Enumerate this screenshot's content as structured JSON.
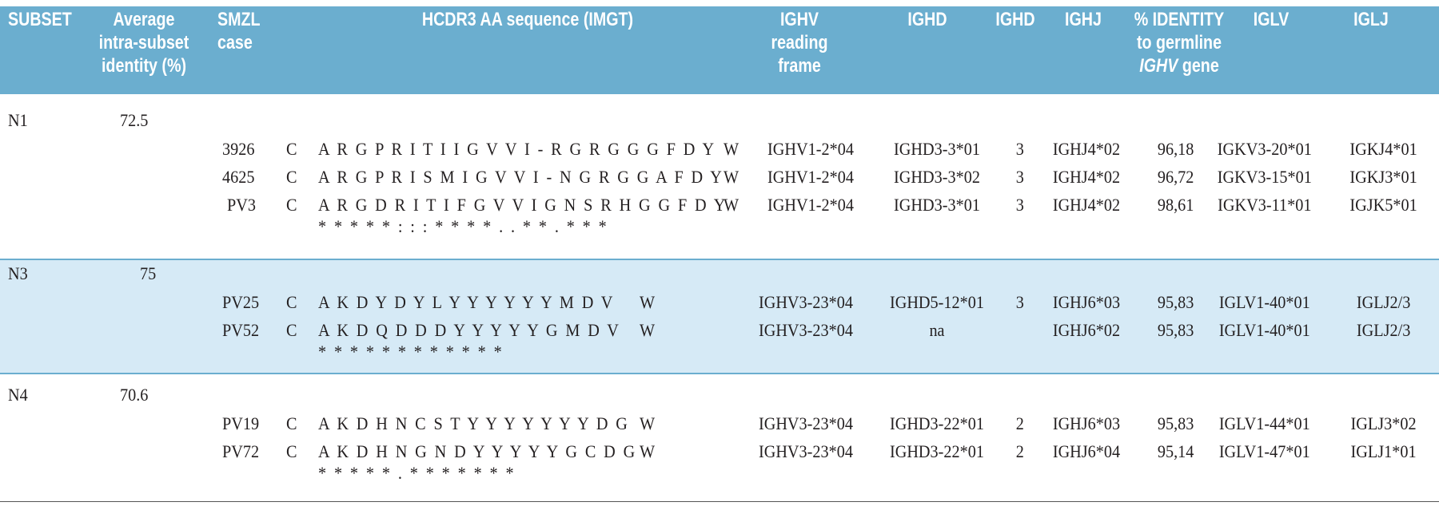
{
  "colors": {
    "header_bg": "#6baecf",
    "header_text": "#ffffff",
    "band_bg": "#d6eaf6",
    "rule": "#6baecf"
  },
  "header": {
    "subset": "SUBSET",
    "avg_identity": [
      "Average",
      "intra-subset",
      "identity (%)"
    ],
    "smzl_case": [
      "SMZL",
      "case"
    ],
    "hcdr3": "HCDR3 AA sequence (IMGT)",
    "ighv_frame": [
      "IGHV",
      "reading",
      "frame"
    ],
    "ighd": "IGHD",
    "ighd_frame": "IGHD",
    "ighj": "IGHJ",
    "identity": [
      "% IDENTITY",
      "to germline",
      "IGHV",
      "gene"
    ],
    "iglv": "IGLV",
    "iglj": "IGLJ"
  },
  "subsets": [
    {
      "name": "N1",
      "avg": "72.5",
      "rows": [
        {
          "case": "3926",
          "c": "C",
          "seq": "ARGPRITIIGVVI-RGRGGGFDY",
          "w": "W",
          "ighv": "IGHV1-2*04",
          "ighd": "IGHD3-3*01",
          "ighd_frame": "3",
          "ighj": "IGHJ4*02",
          "identity": "96,18",
          "iglv": "IGKV3-20*01",
          "iglj": "IGKJ4*01"
        },
        {
          "case": "4625",
          "c": "C",
          "seq": "ARGPRISMIGVVI-NGRGGAFDY",
          "w": "W",
          "ighv": "IGHV1-2*04",
          "ighd": "IGHD3-3*02",
          "ighd_frame": "3",
          "ighj": "IGHJ4*02",
          "identity": "96,72",
          "iglv": "IGKV3-15*01",
          "iglj": "IGKJ3*01"
        },
        {
          "case": "PV3",
          "c": "C",
          "seq": "ARGDRITIFGVVIGNSRHGGFDY",
          "w": "W",
          "ighv": "IGHV1-2*04",
          "ighd": "IGHD3-3*01",
          "ighd_frame": "3",
          "ighj": "IGHJ4*02",
          "identity": "98,61",
          "iglv": "IGKV3-11*01",
          "iglj": "IGJK5*01"
        }
      ],
      "consensus": "*** **:::****  ..*  *.***"
    },
    {
      "name": "N3",
      "avg": "75",
      "rows": [
        {
          "case": "PV25",
          "c": "C",
          "seq": "AKDYDYLYYYYYYMDV",
          "w": "W",
          "ighv": "IGHV3-23*04",
          "ighd": "IGHD5-12*01",
          "ighd_frame": "3",
          "ighj": "IGHJ6*03",
          "identity": "95,83",
          "iglv": "IGLV1-40*01",
          "iglj": "IGLJ2/3"
        },
        {
          "case": "PV52",
          "c": "C",
          "seq": "AKDQDDDYYYYYGMDV",
          "w": "W",
          "ighv": "IGHV3-23*04",
          "ighd": "na",
          "ighd_frame": "",
          "ighj": "IGHJ6*02",
          "identity": "95,83",
          "iglv": "IGLV1-40*01",
          "iglj": "IGLJ2/3"
        }
      ],
      "consensus": "***  *   *****  ***"
    },
    {
      "name": "N4",
      "avg": "70.6",
      "rows": [
        {
          "case": "PV19",
          "c": "C",
          "seq": "AKDHNCSTYYYYYYYDG",
          "w": "W",
          "ighv": "IGHV3-23*04",
          "ighd": "IGHD3-22*01",
          "ighd_frame": "2",
          "ighj": "IGHJ6*03",
          "identity": "95,83",
          "iglv": "IGLV1-44*01",
          "iglj": "IGLJ3*02"
        },
        {
          "case": "PV72",
          "c": "C",
          "seq": "AKDHNGNDYYYYYGCDG",
          "w": "W",
          "ighv": "IGHV3-23*04",
          "ighd": "IGHD3-22*01",
          "ighd_frame": "2",
          "ighj": "IGHJ6*04",
          "identity": "95,14",
          "iglv": "IGLV1-47*01",
          "iglj": "IGLJ1*01"
        }
      ],
      "consensus": "*****   .  *****    **"
    }
  ]
}
